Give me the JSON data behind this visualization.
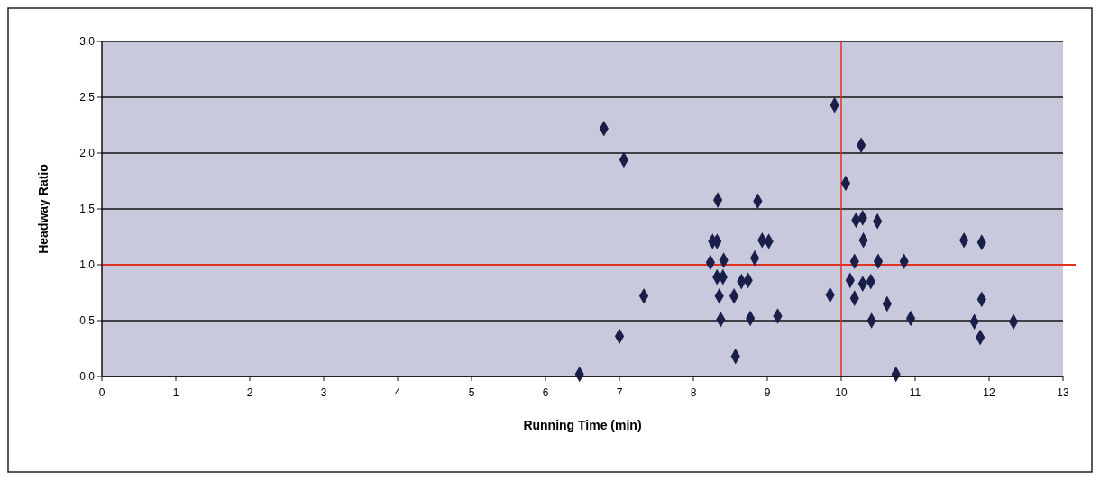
{
  "chart_data": {
    "type": "scatter",
    "xlabel": "Running Time (min)",
    "ylabel": "Headway Ratio",
    "x": [
      6.46,
      6.79,
      7.06,
      7.0,
      7.33,
      8.33,
      8.87,
      8.26,
      8.32,
      8.93,
      9.02,
      8.23,
      8.41,
      8.83,
      8.32,
      8.4,
      8.65,
      8.74,
      8.35,
      8.55,
      8.37,
      8.77,
      9.14,
      8.57,
      9.85,
      9.91,
      10.27,
      10.06,
      10.2,
      10.29,
      10.49,
      10.3,
      11.66,
      11.9,
      10.18,
      10.5,
      10.85,
      10.12,
      10.29,
      10.4,
      10.18,
      10.62,
      11.9,
      10.41,
      10.94,
      11.8,
      12.33,
      11.88,
      10.74
    ],
    "series": [
      {
        "color": "#1a1f4a",
        "values": [
          0.02,
          2.22,
          1.94,
          0.36,
          0.72,
          1.58,
          1.57,
          1.21,
          1.21,
          1.22,
          1.21,
          1.02,
          1.04,
          1.06,
          0.89,
          0.89,
          0.85,
          0.86,
          0.72,
          0.72,
          0.51,
          0.52,
          0.54,
          0.18,
          0.73,
          2.43,
          2.07,
          1.73,
          1.4,
          1.42,
          1.39,
          1.22,
          1.22,
          1.2,
          1.03,
          1.03,
          1.03,
          0.86,
          0.83,
          0.85,
          0.7,
          0.65,
          0.69,
          0.5,
          0.52,
          0.49,
          0.49,
          0.35,
          0.02
        ]
      }
    ],
    "xlim": [
      0,
      13
    ],
    "xticks": [
      0,
      1,
      2,
      3,
      4,
      5,
      6,
      7,
      8,
      9,
      10,
      11,
      12,
      13
    ],
    "ylim": [
      0,
      3
    ],
    "yticks": [
      {
        "value": 0,
        "label": "0.0"
      },
      {
        "value": 0.5,
        "label": "0.5"
      },
      {
        "value": 1,
        "label": "1.0"
      },
      {
        "value": 1.5,
        "label": "1.5"
      },
      {
        "value": 2,
        "label": "2.0"
      },
      {
        "value": 2.5,
        "label": "2.5"
      },
      {
        "value": 3,
        "label": "3.0"
      }
    ],
    "grid": "y",
    "marker": "diamond",
    "ref_lines": [
      {
        "axis": "x",
        "value": 10,
        "color": "#e03020"
      },
      {
        "axis": "y",
        "value": 1,
        "color": "#e03020"
      }
    ]
  }
}
